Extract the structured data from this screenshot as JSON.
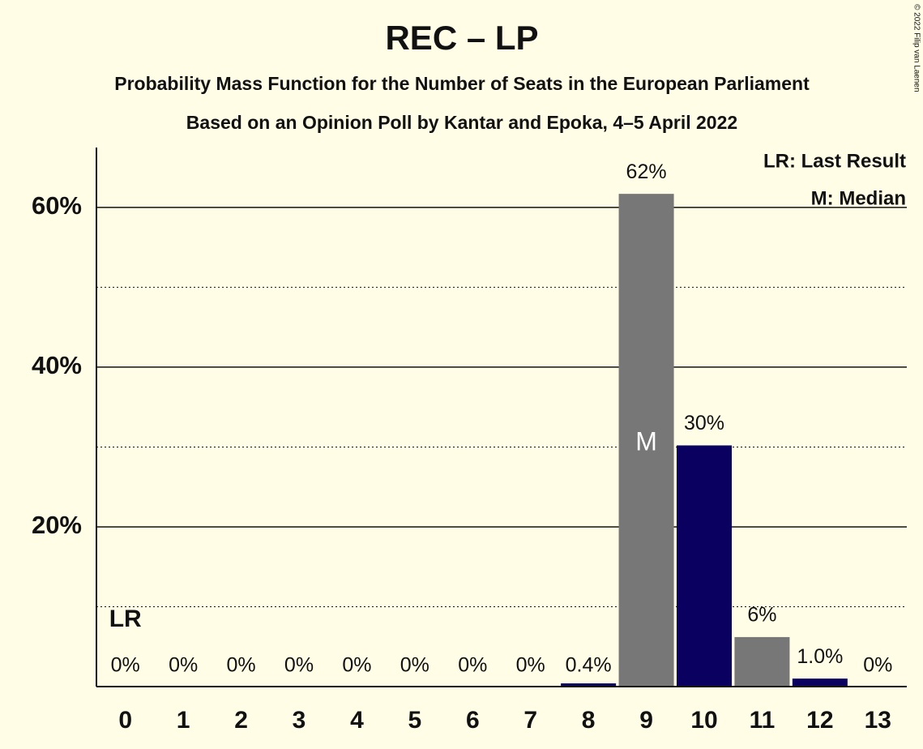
{
  "chart_data": {
    "type": "bar",
    "title": "REC – LP",
    "subtitle": "Probability Mass Function for the Number of Seats in the European Parliament",
    "subtitle2": "Based on an Opinion Poll by Kantar and Epoka, 4–5 April 2022",
    "copyright": "© 2022 Filip van Laenen",
    "categories": [
      "0",
      "1",
      "2",
      "3",
      "4",
      "5",
      "6",
      "7",
      "8",
      "9",
      "10",
      "11",
      "12",
      "13"
    ],
    "values": [
      0,
      0,
      0,
      0,
      0,
      0,
      0,
      0,
      0.4,
      61.7,
      30.2,
      6.2,
      1.0,
      0
    ],
    "value_labels": [
      "0%",
      "0%",
      "0%",
      "0%",
      "0%",
      "0%",
      "0%",
      "0%",
      "0.4%",
      "62%",
      "30%",
      "6%",
      "1.0%",
      "0%"
    ],
    "colors": [
      "#0a0060",
      "#777777",
      "#0a0060",
      "#777777",
      "#0a0060",
      "#777777",
      "#0a0060",
      "#777777",
      "#0a0060",
      "#777777",
      "#0a0060",
      "#777777",
      "#0a0060",
      "#777777"
    ],
    "ylim": [
      0,
      67.5
    ],
    "yticks": [
      {
        "value": 20,
        "label": "20%"
      },
      {
        "value": 40,
        "label": "40%"
      },
      {
        "value": 60,
        "label": "60%"
      }
    ],
    "minor_yticks": [
      10,
      30,
      50
    ],
    "grid": true,
    "last_result": {
      "label": "LR",
      "seats": 0
    },
    "median": {
      "label": "M",
      "seats": 9
    },
    "legend": [
      "LR: Last Result",
      "M: Median"
    ]
  }
}
